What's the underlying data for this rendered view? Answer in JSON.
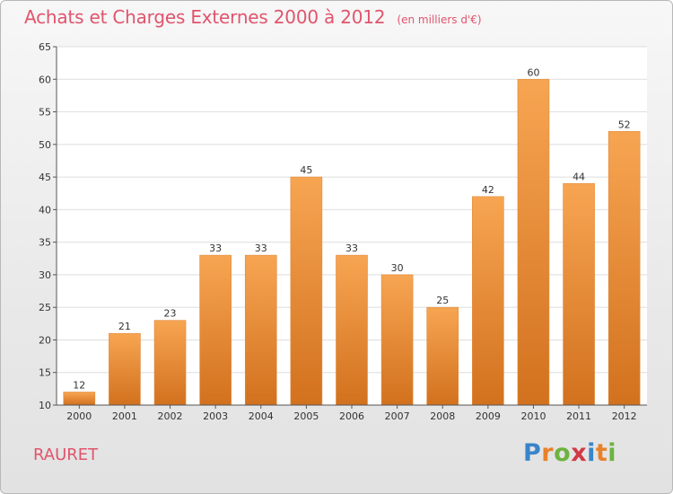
{
  "chart_data": {
    "type": "bar",
    "title": "Achats et Charges Externes 2000 à 2012",
    "unit_label": "(en milliers d'€)",
    "categories": [
      "2000",
      "2001",
      "2002",
      "2003",
      "2004",
      "2005",
      "2006",
      "2007",
      "2008",
      "2009",
      "2010",
      "2011",
      "2012"
    ],
    "values": [
      12,
      21,
      23,
      33,
      33,
      45,
      33,
      30,
      25,
      42,
      60,
      44,
      52
    ],
    "ylim": [
      10,
      65
    ],
    "yticks": [
      10,
      15,
      20,
      25,
      30,
      35,
      40,
      45,
      50,
      55,
      60,
      65
    ],
    "grid": true,
    "colors": {
      "bar_top": "#f7a552",
      "bar_bottom": "#d2711e",
      "title": "#e0546c",
      "grid": "#dedede",
      "axis": "#555555"
    }
  },
  "place_name": "RAURET",
  "logo": {
    "letters": [
      "P",
      "r",
      "o",
      "x",
      "i",
      "t",
      "i"
    ],
    "colors": [
      "#3a84c9",
      "#e8822a",
      "#6db33f",
      "#d03a45",
      "#3a84c9",
      "#e8822a",
      "#6db33f"
    ]
  }
}
